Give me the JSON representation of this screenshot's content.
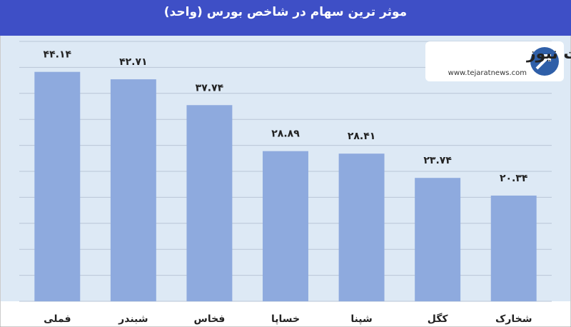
{
  "chart_data": {
    "type": "bar",
    "title": "موثر ترین سهام در شاخص بورس (واحد)",
    "categories": [
      "فملی",
      "شبندر",
      "فخاس",
      "خساپا",
      "شپنا",
      "کگل",
      "شخارک"
    ],
    "values": [
      44.14,
      42.71,
      37.74,
      28.89,
      28.41,
      23.74,
      20.34
    ],
    "value_labels": [
      "۴۴.۱۴",
      "۴۲.۷۱",
      "۳۷.۷۴",
      "۲۸.۸۹",
      "۲۸.۴۱",
      "۲۳.۷۴",
      "۲۰.۳۴"
    ],
    "color": "#8eaade",
    "ylim": [
      0,
      50
    ],
    "yticks": [
      0,
      5,
      10,
      15,
      20,
      25,
      30,
      35,
      40,
      45,
      50
    ],
    "grid": true,
    "logo": {
      "name": "تجارت نیوز",
      "url": "www.tejaratnews.com"
    }
  }
}
